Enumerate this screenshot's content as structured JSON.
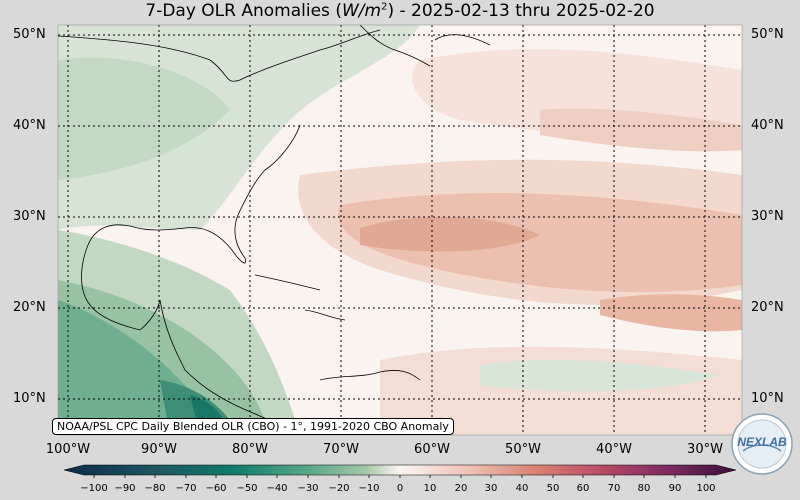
{
  "title": {
    "pre": "7-Day OLR Anomalies (",
    "unit_base": "W/m",
    "unit_exp": "2",
    "post": ") - 2025-02-13 thru 2025-02-20"
  },
  "lat_labels": [
    "50°N",
    "40°N",
    "30°N",
    "20°N",
    "10°N"
  ],
  "lat_labels_right": [
    "50°N",
    "40°N",
    "30°N",
    "20°N",
    "10°N"
  ],
  "lon_labels": [
    "100°W",
    "90°W",
    "80°W",
    "70°W",
    "60°W",
    "50°W",
    "40°W",
    "30°W"
  ],
  "credit": "NOAA/PSL CPC Daily Blended OLR (CBO) - 1°, 1991-2020 CBO Anomaly",
  "colorbar_ticks": [
    "−100",
    "−90",
    "−80",
    "−70",
    "−60",
    "−50",
    "−40",
    "−30",
    "−20",
    "−10",
    "0",
    "10",
    "20",
    "30",
    "40",
    "50",
    "60",
    "70",
    "80",
    "90",
    "100"
  ],
  "logo_text": "NEXLAB",
  "colors": {
    "negative_strong": "#0d6b5c",
    "negative_mid": "#4ea384",
    "negative_light": "#cfe0cf",
    "neutral": "#fbf3f0",
    "positive_light": "#f1d6cc",
    "positive_mid": "#e3a791",
    "positive_strong": "#8c2a5c"
  }
}
